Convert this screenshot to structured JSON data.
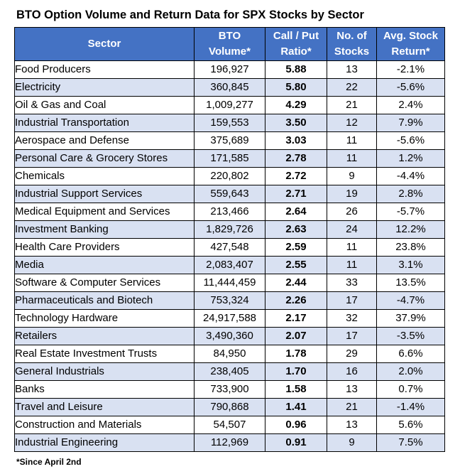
{
  "title": "BTO Option Volume and Return Data for SPX Stocks by Sector",
  "headers": {
    "sector": "Sector",
    "volume_line1": "BTO",
    "volume_line2": "Volume*",
    "ratio_line1": "Call / Put",
    "ratio_line2": "Ratio*",
    "stocks_line1": "No. of",
    "stocks_line2": "Stocks",
    "return_line1": "Avg. Stock",
    "return_line2": "Return*"
  },
  "rows": [
    {
      "sector": "Food Producers",
      "volume": "196,927",
      "ratio": "5.88",
      "stocks": "13",
      "return": "-2.1%"
    },
    {
      "sector": "Electricity",
      "volume": "360,845",
      "ratio": "5.80",
      "stocks": "22",
      "return": "-5.6%"
    },
    {
      "sector": "Oil & Gas and Coal",
      "volume": "1,009,277",
      "ratio": "4.29",
      "stocks": "21",
      "return": "2.4%"
    },
    {
      "sector": "Industrial Transportation",
      "volume": "159,553",
      "ratio": "3.50",
      "stocks": "12",
      "return": "7.9%"
    },
    {
      "sector": "Aerospace and Defense",
      "volume": "375,689",
      "ratio": "3.03",
      "stocks": "11",
      "return": "-5.6%"
    },
    {
      "sector": "Personal Care & Grocery Stores",
      "volume": "171,585",
      "ratio": "2.78",
      "stocks": "11",
      "return": "1.2%"
    },
    {
      "sector": "Chemicals",
      "volume": "220,802",
      "ratio": "2.72",
      "stocks": "9",
      "return": "-4.4%"
    },
    {
      "sector": "Industrial Support Services",
      "volume": "559,643",
      "ratio": "2.71",
      "stocks": "19",
      "return": "2.8%"
    },
    {
      "sector": "Medical Equipment and Services",
      "volume": "213,466",
      "ratio": "2.64",
      "stocks": "26",
      "return": "-5.7%"
    },
    {
      "sector": "Investment Banking",
      "volume": "1,829,726",
      "ratio": "2.63",
      "stocks": "24",
      "return": "12.2%"
    },
    {
      "sector": "Health Care Providers",
      "volume": "427,548",
      "ratio": "2.59",
      "stocks": "11",
      "return": "23.8%"
    },
    {
      "sector": "Media",
      "volume": "2,083,407",
      "ratio": "2.55",
      "stocks": "11",
      "return": "3.1%"
    },
    {
      "sector": "Software & Computer Services",
      "volume": "11,444,459",
      "ratio": "2.44",
      "stocks": "33",
      "return": "13.5%"
    },
    {
      "sector": "Pharmaceuticals and Biotech",
      "volume": "753,324",
      "ratio": "2.26",
      "stocks": "17",
      "return": "-4.7%"
    },
    {
      "sector": "Technology Hardware",
      "volume": "24,917,588",
      "ratio": "2.17",
      "stocks": "32",
      "return": "37.9%"
    },
    {
      "sector": "Retailers",
      "volume": "3,490,360",
      "ratio": "2.07",
      "stocks": "17",
      "return": "-3.5%"
    },
    {
      "sector": "Real Estate Investment Trusts",
      "volume": "84,950",
      "ratio": "1.78",
      "stocks": "29",
      "return": "6.6%"
    },
    {
      "sector": "General Industrials",
      "volume": "238,405",
      "ratio": "1.70",
      "stocks": "16",
      "return": "2.0%"
    },
    {
      "sector": "Banks",
      "volume": "733,900",
      "ratio": "1.58",
      "stocks": "13",
      "return": "0.7%"
    },
    {
      "sector": "Travel and Leisure",
      "volume": "790,868",
      "ratio": "1.41",
      "stocks": "21",
      "return": "-1.4%"
    },
    {
      "sector": "Construction and Materials",
      "volume": "54,507",
      "ratio": "0.96",
      "stocks": "13",
      "return": "5.6%"
    },
    {
      "sector": "Industrial Engineering",
      "volume": "112,969",
      "ratio": "0.91",
      "stocks": "9",
      "return": "7.5%"
    }
  ],
  "footnote": "*Since April 2nd",
  "colors": {
    "header_bg": "#4472c4",
    "header_text": "#ffffff",
    "alt_row_bg": "#d9e1f2"
  }
}
